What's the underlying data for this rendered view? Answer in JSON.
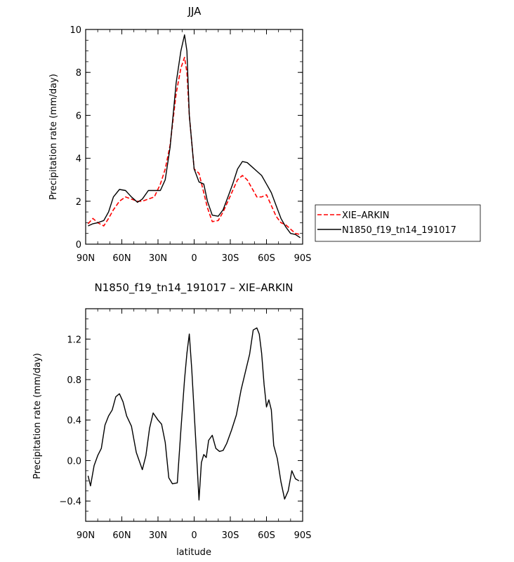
{
  "chart_data": [
    {
      "type": "line",
      "title": "JJA",
      "xlabel": "",
      "ylabel": "Precipitation rate (mm/day)",
      "xlim": [
        90,
        -90
      ],
      "ylim": [
        0,
        10
      ],
      "xticks": [
        90,
        60,
        30,
        0,
        -30,
        -60,
        -90
      ],
      "xticklabels": [
        "90N",
        "60N",
        "30N",
        "0",
        "30S",
        "60S",
        "90S"
      ],
      "yticks": [
        0,
        2,
        4,
        6,
        8,
        10
      ],
      "yticklabels": [
        "0",
        "2",
        "4",
        "6",
        "8",
        "10"
      ],
      "legend_position": "right",
      "series": [
        {
          "name": "XIE–ARKIN",
          "color": "#ff0000",
          "dash": "dashed",
          "x": [
            88,
            84,
            80,
            75,
            71,
            67,
            62,
            57,
            52,
            47,
            43,
            38,
            33,
            28,
            24,
            20,
            15,
            11,
            8,
            6,
            4,
            0,
            -4,
            -8,
            -11,
            -15,
            -20,
            -24,
            -28,
            -32,
            -36,
            -40,
            -44,
            -48,
            -52,
            -56,
            -60,
            -64,
            -68,
            -72,
            -76,
            -80,
            -84,
            -88
          ],
          "y": [
            0.95,
            1.2,
            1.0,
            0.85,
            1.2,
            1.6,
            2.0,
            2.2,
            2.1,
            2.0,
            2.0,
            2.1,
            2.2,
            2.8,
            3.5,
            4.6,
            7.0,
            8.2,
            8.7,
            8.0,
            6.0,
            3.5,
            3.3,
            2.4,
            1.7,
            1.05,
            1.1,
            1.5,
            2.0,
            2.5,
            3.0,
            3.2,
            3.0,
            2.6,
            2.2,
            2.2,
            2.3,
            1.8,
            1.3,
            1.0,
            0.9,
            0.7,
            0.5,
            0.45
          ]
        },
        {
          "name": "N1850_f19_tn14_191017",
          "color": "#000000",
          "dash": "solid",
          "x": [
            88,
            84,
            80,
            75,
            71,
            67,
            62,
            57,
            52,
            47,
            43,
            38,
            33,
            28,
            24,
            20,
            15,
            11,
            8,
            6,
            4,
            0,
            -4,
            -8,
            -11,
            -15,
            -20,
            -24,
            -28,
            -32,
            -36,
            -40,
            -44,
            -48,
            -52,
            -56,
            -60,
            -64,
            -68,
            -72,
            -76,
            -80,
            -84,
            -88
          ],
          "y": [
            0.85,
            0.95,
            1.0,
            1.1,
            1.5,
            2.2,
            2.55,
            2.5,
            2.2,
            1.95,
            2.1,
            2.5,
            2.5,
            2.5,
            3.0,
            4.5,
            7.5,
            9.0,
            9.75,
            9.0,
            6.0,
            3.5,
            2.9,
            2.8,
            2.0,
            1.35,
            1.3,
            1.6,
            2.2,
            2.8,
            3.5,
            3.85,
            3.8,
            3.6,
            3.4,
            3.2,
            2.8,
            2.4,
            1.8,
            1.2,
            0.8,
            0.5,
            0.45,
            0.3
          ]
        }
      ]
    },
    {
      "type": "line",
      "title": "N1850_f19_tn14_191017 – XIE–ARKIN",
      "xlabel": "latitude",
      "ylabel": "Precipitation rate (mm/day)",
      "xlim": [
        90,
        -90
      ],
      "ylim": [
        -0.6,
        1.5
      ],
      "xticks": [
        90,
        60,
        30,
        0,
        -30,
        -60,
        -90
      ],
      "xticklabels": [
        "90N",
        "60N",
        "30N",
        "0",
        "30S",
        "60S",
        "90S"
      ],
      "yticks": [
        -0.4,
        0.0,
        0.4,
        0.8,
        1.2
      ],
      "yticklabels": [
        "−0.4",
        "0.0",
        "0.4",
        "0.8",
        "1.2"
      ],
      "series": [
        {
          "name": "",
          "color": "#000000",
          "dash": "solid",
          "x": [
            88,
            86,
            83,
            80,
            77,
            74,
            71,
            68,
            65,
            62,
            59,
            56,
            52,
            48,
            43,
            40,
            37,
            34,
            30,
            27,
            24,
            21,
            18,
            14,
            11,
            8,
            6,
            4,
            2,
            -2,
            -4,
            -6,
            -8,
            -10,
            -12,
            -15,
            -18,
            -21,
            -24,
            -27,
            -31,
            -35,
            -39,
            -43,
            -46,
            -49,
            -52,
            -54,
            -56,
            -58,
            -60,
            -62,
            -64,
            -66,
            -69,
            -72,
            -75,
            -78,
            -81,
            -84,
            -87
          ],
          "y": [
            -0.15,
            -0.25,
            -0.05,
            0.05,
            0.12,
            0.35,
            0.44,
            0.5,
            0.63,
            0.66,
            0.58,
            0.44,
            0.34,
            0.08,
            -0.09,
            0.05,
            0.32,
            0.47,
            0.4,
            0.36,
            0.18,
            -0.17,
            -0.23,
            -0.22,
            0.3,
            0.8,
            1.06,
            1.25,
            0.9,
            0.06,
            -0.39,
            -0.02,
            0.06,
            0.03,
            0.2,
            0.25,
            0.12,
            0.09,
            0.1,
            0.17,
            0.3,
            0.45,
            0.7,
            0.9,
            1.05,
            1.29,
            1.31,
            1.25,
            1.06,
            0.75,
            0.53,
            0.6,
            0.5,
            0.15,
            0.02,
            -0.21,
            -0.38,
            -0.3,
            -0.1,
            -0.18,
            -0.2
          ]
        }
      ]
    }
  ],
  "legend": {
    "entries": [
      "XIE–ARKIN",
      "N1850_f19_tn14_191017"
    ]
  }
}
